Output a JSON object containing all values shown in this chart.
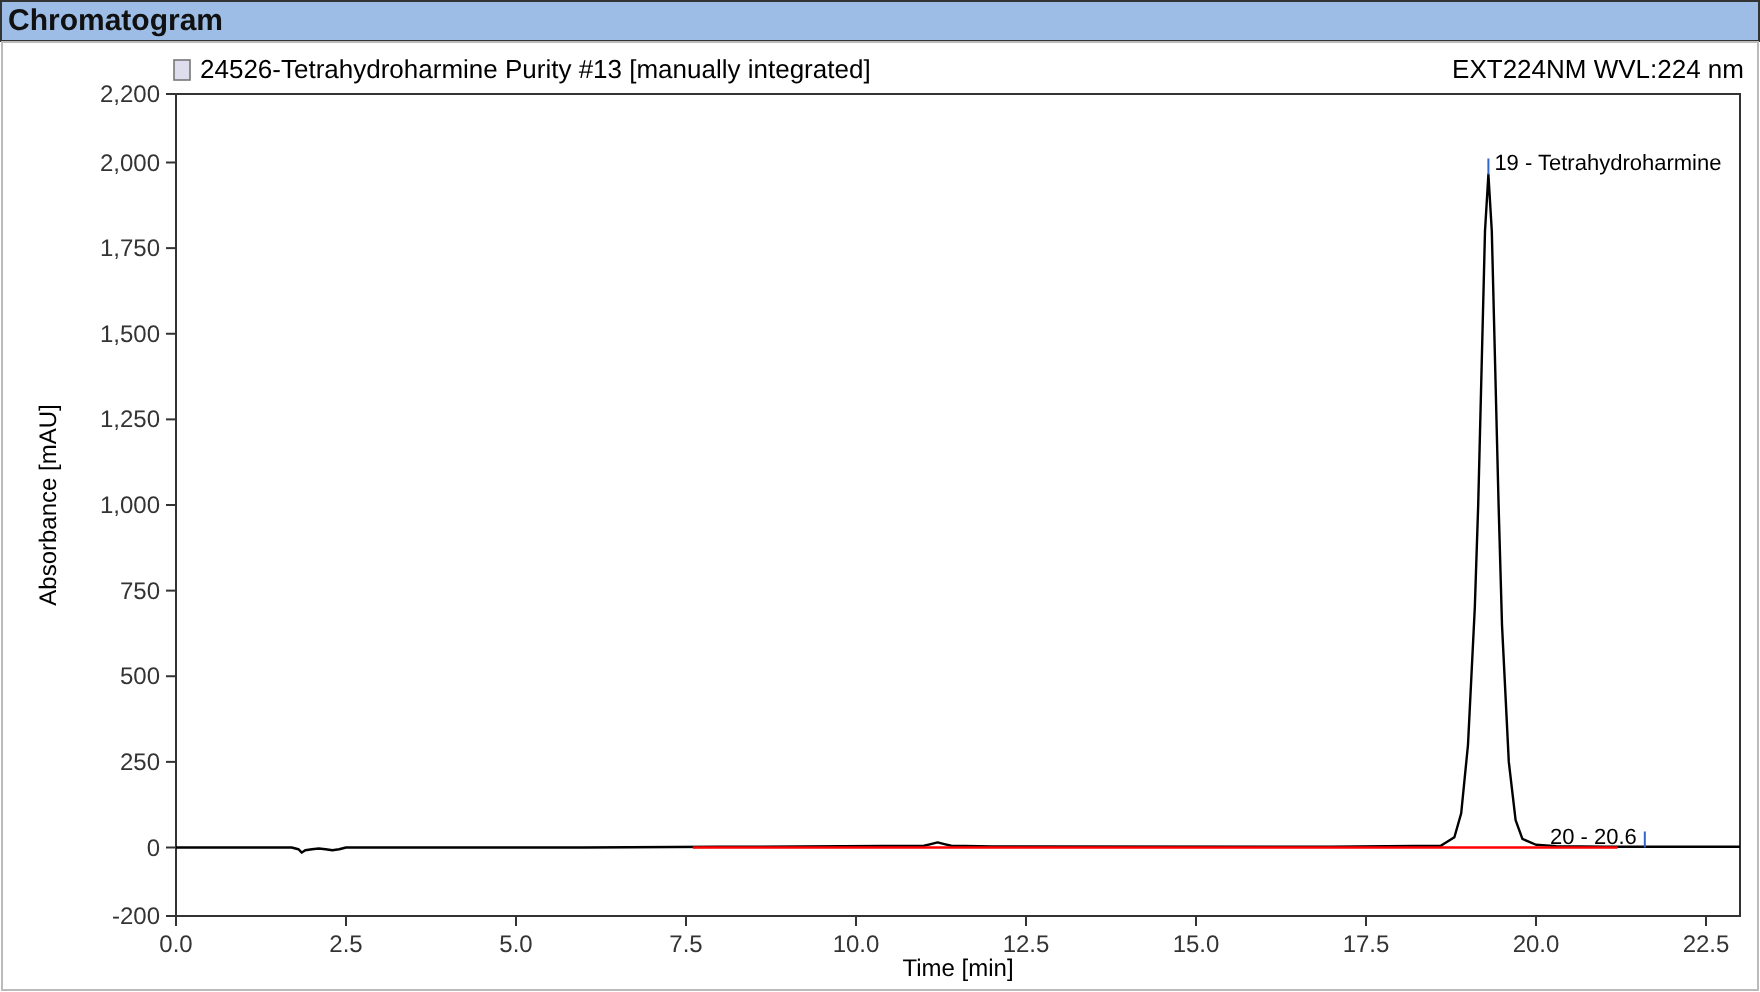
{
  "chart_data": {
    "type": "line",
    "title": "Chromatogram",
    "subtitle": "24526-Tetrahydroharmine Purity #13 [manually integrated]",
    "xlabel": "Time [min]",
    "ylabel": "Absorbance [mAU]",
    "xlim": [
      0,
      23
    ],
    "xticks": [
      {
        "value": 0,
        "label": "0.0"
      },
      {
        "value": 2.5,
        "label": "2.5"
      },
      {
        "value": 5,
        "label": "5.0"
      },
      {
        "value": 7.5,
        "label": "7.5"
      },
      {
        "value": 10,
        "label": "10.0"
      },
      {
        "value": 12.5,
        "label": "12.5"
      },
      {
        "value": 15,
        "label": "15.0"
      },
      {
        "value": 17.5,
        "label": "17.5"
      },
      {
        "value": 20,
        "label": "20.0"
      },
      {
        "value": 22.5,
        "label": "22.5"
      }
    ],
    "ylim": [
      -200,
      2200
    ],
    "yticks": [
      {
        "value": -200,
        "label": "-200"
      },
      {
        "value": 0,
        "label": "0"
      },
      {
        "value": 250,
        "label": "250"
      },
      {
        "value": 500,
        "label": "500"
      },
      {
        "value": 750,
        "label": "750"
      },
      {
        "value": 1000,
        "label": "1,000"
      },
      {
        "value": 1250,
        "label": "1,250"
      },
      {
        "value": 1500,
        "label": "1,500"
      },
      {
        "value": 1750,
        "label": "1,750"
      },
      {
        "value": 2000,
        "label": "2,000"
      },
      {
        "value": 2200,
        "label": "2,200"
      }
    ],
    "grid": false,
    "marker": "none",
    "line_style": "solid",
    "series": [
      {
        "color": "#000000",
        "x": [
          0,
          1.7,
          1.8,
          1.85,
          1.9,
          2.0,
          2.1,
          2.2,
          2.3,
          2.4,
          2.5,
          6,
          8,
          11,
          11.1,
          11.2,
          11.3,
          11.4,
          12,
          17,
          18.6,
          18.8,
          18.9,
          19.0,
          19.1,
          19.15,
          19.2,
          19.25,
          19.3,
          19.35,
          19.4,
          19.45,
          19.5,
          19.6,
          19.7,
          19.8,
          20.0,
          20.3,
          21,
          23
        ],
        "values": [
          0,
          0,
          -5,
          -15,
          -8,
          -5,
          -3,
          -5,
          -8,
          -5,
          0,
          0,
          2,
          5,
          10,
          15,
          10,
          5,
          3,
          2,
          5,
          30,
          100,
          300,
          700,
          1000,
          1400,
          1800,
          1965,
          1800,
          1400,
          1000,
          650,
          250,
          80,
          25,
          8,
          4,
          2,
          2
        ]
      },
      {
        "color": "#ff0000",
        "x": [
          7.6,
          21.2
        ],
        "values": [
          0,
          0
        ]
      }
    ],
    "annotations": [
      {
        "text": "19 - Tetrahydroharmine",
        "x": 19.3,
        "y": 1965
      },
      {
        "text": "20 - 20.6",
        "x": 21.6,
        "y": 0
      },
      "EXT224NM WVL:224 nm"
    ]
  }
}
